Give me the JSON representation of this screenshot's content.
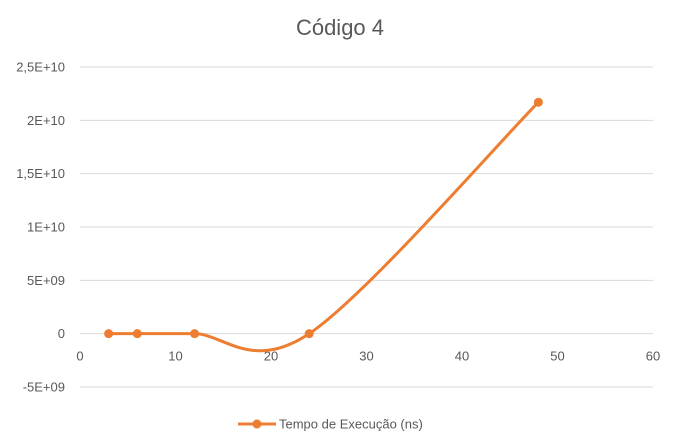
{
  "chart_data": {
    "type": "line",
    "title": "Código 4",
    "xlabel": "",
    "ylabel": "",
    "xlim": [
      0,
      60
    ],
    "ylim": [
      -5000000000,
      25000000000
    ],
    "x_ticks": [
      0,
      10,
      20,
      30,
      40,
      50,
      60
    ],
    "x_tick_labels": [
      "0",
      "10",
      "20",
      "30",
      "40",
      "50",
      "60"
    ],
    "y_ticks": [
      -5000000000,
      0,
      5000000000,
      10000000000,
      15000000000,
      20000000000,
      25000000000
    ],
    "y_tick_labels": [
      "-5E+09",
      "0",
      "5E+09",
      "1E+10",
      "1,5E+10",
      "2E+10",
      "2,5E+10"
    ],
    "grid": true,
    "smooth": true,
    "legend": {
      "position": "bottom"
    },
    "series": [
      {
        "name": "Tempo de Execução (ns)",
        "color": "#ED7D31",
        "marker": "circle",
        "x": [
          3,
          6,
          12,
          24,
          48
        ],
        "y": [
          0,
          0,
          0,
          0,
          21700000000
        ]
      }
    ]
  }
}
